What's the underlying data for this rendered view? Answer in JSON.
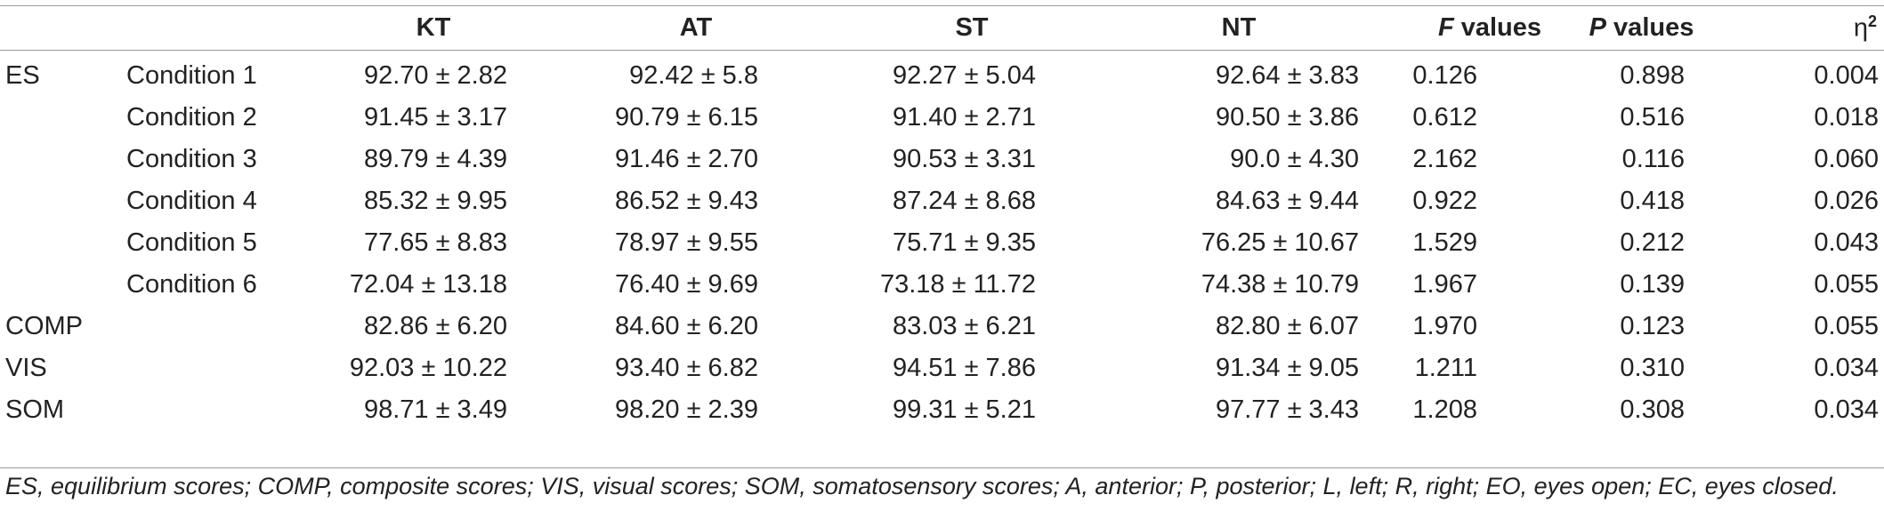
{
  "table": {
    "headers": {
      "row_label": "",
      "sub_label": "",
      "kt": "KT",
      "at": "AT",
      "st": "ST",
      "nt": "NT",
      "f_italic": "F",
      "f_rest": " values",
      "p_italic": "P",
      "p_rest": " values",
      "eta_base": "η",
      "eta_sup": "2"
    },
    "rows": [
      {
        "group": "ES",
        "condition": "Condition 1",
        "kt": "92.70 ± 2.82",
        "at": "92.42 ± 5.8",
        "st": "92.27 ± 5.04",
        "nt": "92.64 ± 3.83",
        "f": "0.126",
        "p": "0.898",
        "eta": "0.004"
      },
      {
        "group": "",
        "condition": "Condition 2",
        "kt": "91.45 ± 3.17",
        "at": "90.79 ± 6.15",
        "st": "91.40 ± 2.71",
        "nt": "90.50 ± 3.86",
        "f": "0.612",
        "p": "0.516",
        "eta": "0.018"
      },
      {
        "group": "",
        "condition": "Condition 3",
        "kt": "89.79 ± 4.39",
        "at": "91.46 ± 2.70",
        "st": "90.53 ± 3.31",
        "nt": "90.0 ± 4.30",
        "f": "2.162",
        "p": "0.116",
        "eta": "0.060"
      },
      {
        "group": "",
        "condition": "Condition 4",
        "kt": "85.32 ± 9.95",
        "at": "86.52 ± 9.43",
        "st": "87.24 ± 8.68",
        "nt": "84.63 ± 9.44",
        "f": "0.922",
        "p": "0.418",
        "eta": "0.026"
      },
      {
        "group": "",
        "condition": "Condition 5",
        "kt": "77.65 ± 8.83",
        "at": "78.97 ± 9.55",
        "st": "75.71 ± 9.35",
        "nt": "76.25 ± 10.67",
        "f": "1.529",
        "p": "0.212",
        "eta": "0.043"
      },
      {
        "group": "",
        "condition": "Condition 6",
        "kt": "72.04 ± 13.18",
        "at": "76.40 ± 9.69",
        "st": "73.18 ± 11.72",
        "nt": "74.38 ± 10.79",
        "f": "1.967",
        "p": "0.139",
        "eta": "0.055"
      },
      {
        "group": "COMP",
        "condition": "",
        "kt": "82.86 ± 6.20",
        "at": "84.60 ± 6.20",
        "st": "83.03 ± 6.21",
        "nt": "82.80 ± 6.07",
        "f": "1.970",
        "p": "0.123",
        "eta": "0.055"
      },
      {
        "group": "VIS",
        "condition": "",
        "kt": "92.03 ± 10.22",
        "at": "93.40 ± 6.82",
        "st": "94.51 ± 7.86",
        "nt": "91.34 ± 9.05",
        "f": "1.211",
        "p": "0.310",
        "eta": "0.034"
      },
      {
        "group": "SOM",
        "condition": "",
        "kt": "98.71 ± 3.49",
        "at": "98.20 ± 2.39",
        "st": "99.31 ± 5.21",
        "nt": "97.77 ± 3.43",
        "f": "1.208",
        "p": "0.308",
        "eta": "0.034"
      }
    ]
  },
  "footnote": "ES, equilibrium scores; COMP, composite scores; VIS, visual scores; SOM, somatosensory scores; A, anterior; P, posterior; L, left; R, right; EO, eyes open; EC, eyes closed."
}
